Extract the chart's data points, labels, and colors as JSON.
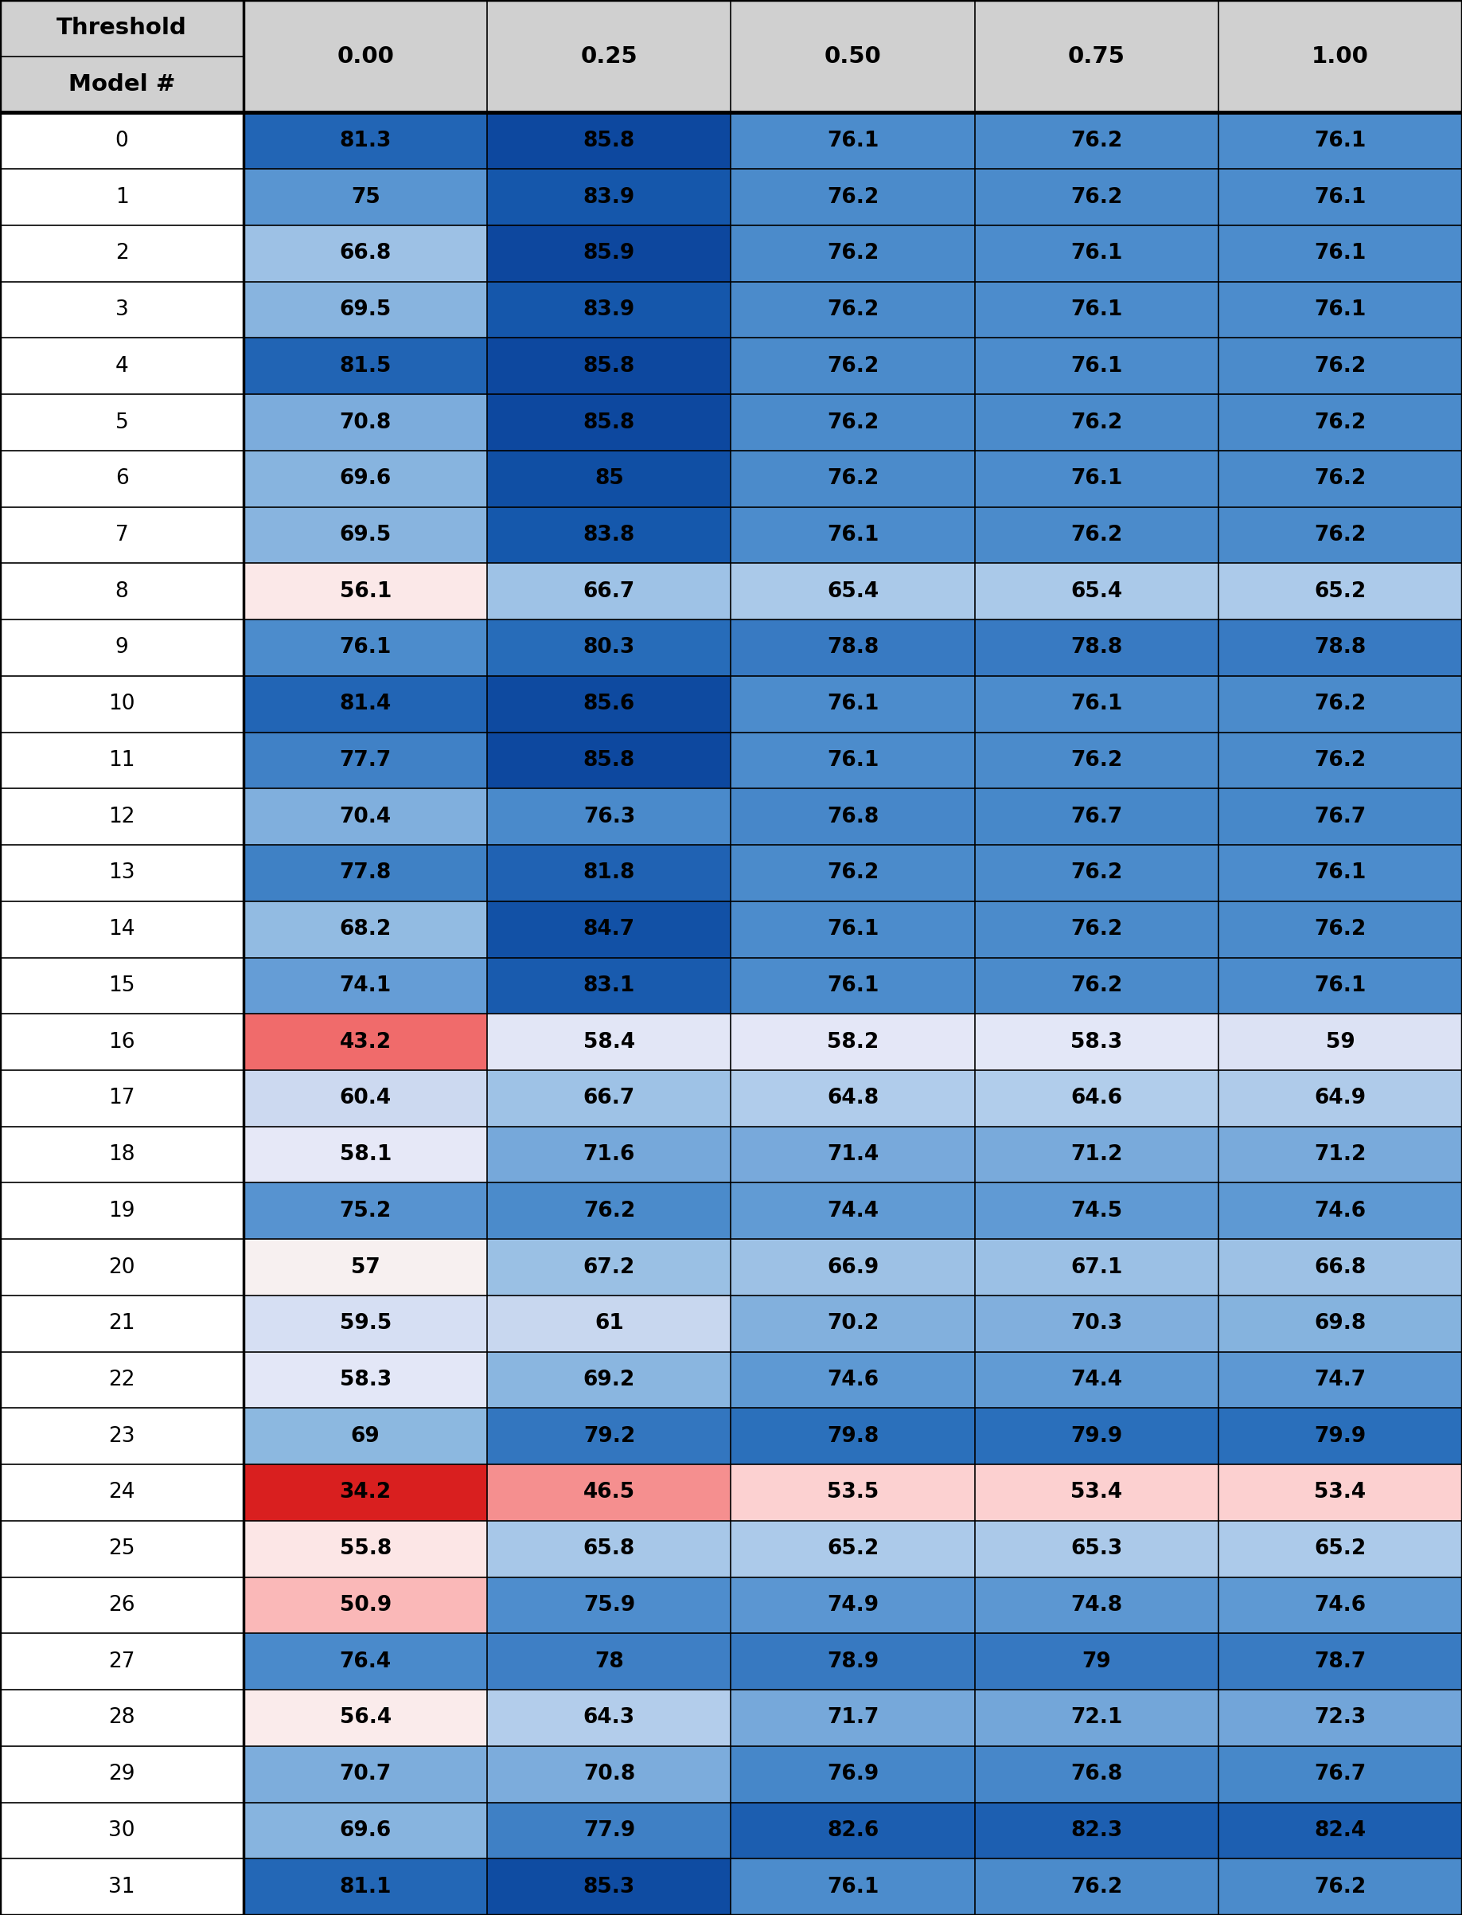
{
  "columns": [
    "0.00",
    "0.25",
    "0.50",
    "0.75",
    "1.00"
  ],
  "rows": [
    0,
    1,
    2,
    3,
    4,
    5,
    6,
    7,
    8,
    9,
    10,
    11,
    12,
    13,
    14,
    15,
    16,
    17,
    18,
    19,
    20,
    21,
    22,
    23,
    24,
    25,
    26,
    27,
    28,
    29,
    30,
    31
  ],
  "data": [
    [
      81.3,
      85.8,
      76.1,
      76.2,
      76.1
    ],
    [
      75.0,
      83.9,
      76.2,
      76.2,
      76.1
    ],
    [
      66.8,
      85.9,
      76.2,
      76.1,
      76.1
    ],
    [
      69.5,
      83.9,
      76.2,
      76.1,
      76.1
    ],
    [
      81.5,
      85.8,
      76.2,
      76.1,
      76.2
    ],
    [
      70.8,
      85.8,
      76.2,
      76.2,
      76.2
    ],
    [
      69.6,
      85.0,
      76.2,
      76.1,
      76.2
    ],
    [
      69.5,
      83.8,
      76.1,
      76.2,
      76.2
    ],
    [
      56.1,
      66.7,
      65.4,
      65.4,
      65.2
    ],
    [
      76.1,
      80.3,
      78.8,
      78.8,
      78.8
    ],
    [
      81.4,
      85.6,
      76.1,
      76.1,
      76.2
    ],
    [
      77.7,
      85.8,
      76.1,
      76.2,
      76.2
    ],
    [
      70.4,
      76.3,
      76.8,
      76.7,
      76.7
    ],
    [
      77.8,
      81.8,
      76.2,
      76.2,
      76.1
    ],
    [
      68.2,
      84.7,
      76.1,
      76.2,
      76.2
    ],
    [
      74.1,
      83.1,
      76.1,
      76.2,
      76.1
    ],
    [
      43.2,
      58.4,
      58.2,
      58.3,
      59.0
    ],
    [
      60.4,
      66.7,
      64.8,
      64.6,
      64.9
    ],
    [
      58.1,
      71.6,
      71.4,
      71.2,
      71.2
    ],
    [
      75.2,
      76.2,
      74.4,
      74.5,
      74.6
    ],
    [
      57.0,
      67.2,
      66.9,
      67.1,
      66.8
    ],
    [
      59.5,
      61.0,
      70.2,
      70.3,
      69.8
    ],
    [
      58.3,
      69.2,
      74.6,
      74.4,
      74.7
    ],
    [
      69.0,
      79.2,
      79.8,
      79.9,
      79.9
    ],
    [
      34.2,
      46.5,
      53.5,
      53.4,
      53.4
    ],
    [
      55.8,
      65.8,
      65.2,
      65.3,
      65.2
    ],
    [
      50.9,
      75.9,
      74.9,
      74.8,
      74.6
    ],
    [
      76.4,
      78.0,
      78.9,
      79.0,
      78.7
    ],
    [
      56.4,
      64.3,
      71.7,
      72.1,
      72.3
    ],
    [
      70.7,
      70.8,
      76.9,
      76.8,
      76.7
    ],
    [
      69.6,
      77.9,
      82.6,
      82.3,
      82.4
    ],
    [
      81.1,
      85.3,
      76.1,
      76.2,
      76.2
    ]
  ],
  "header_bg": "#d0d0d0",
  "header_text_color": "#000000",
  "row_label_bg": "#ffffff",
  "font_size": 19,
  "header_font_size": 21,
  "vmin": 34.2,
  "vmax": 85.9,
  "red_low": [
    0.85,
    0.2,
    0.2
  ],
  "red_high": [
    1.0,
    0.75,
    0.75
  ],
  "white": [
    1.0,
    1.0,
    1.0
  ],
  "blue_low": [
    0.53,
    0.75,
    0.92
  ],
  "blue_high": [
    0.12,
    0.47,
    0.71
  ],
  "red_threshold": 53.5,
  "blue_threshold": 57.0
}
